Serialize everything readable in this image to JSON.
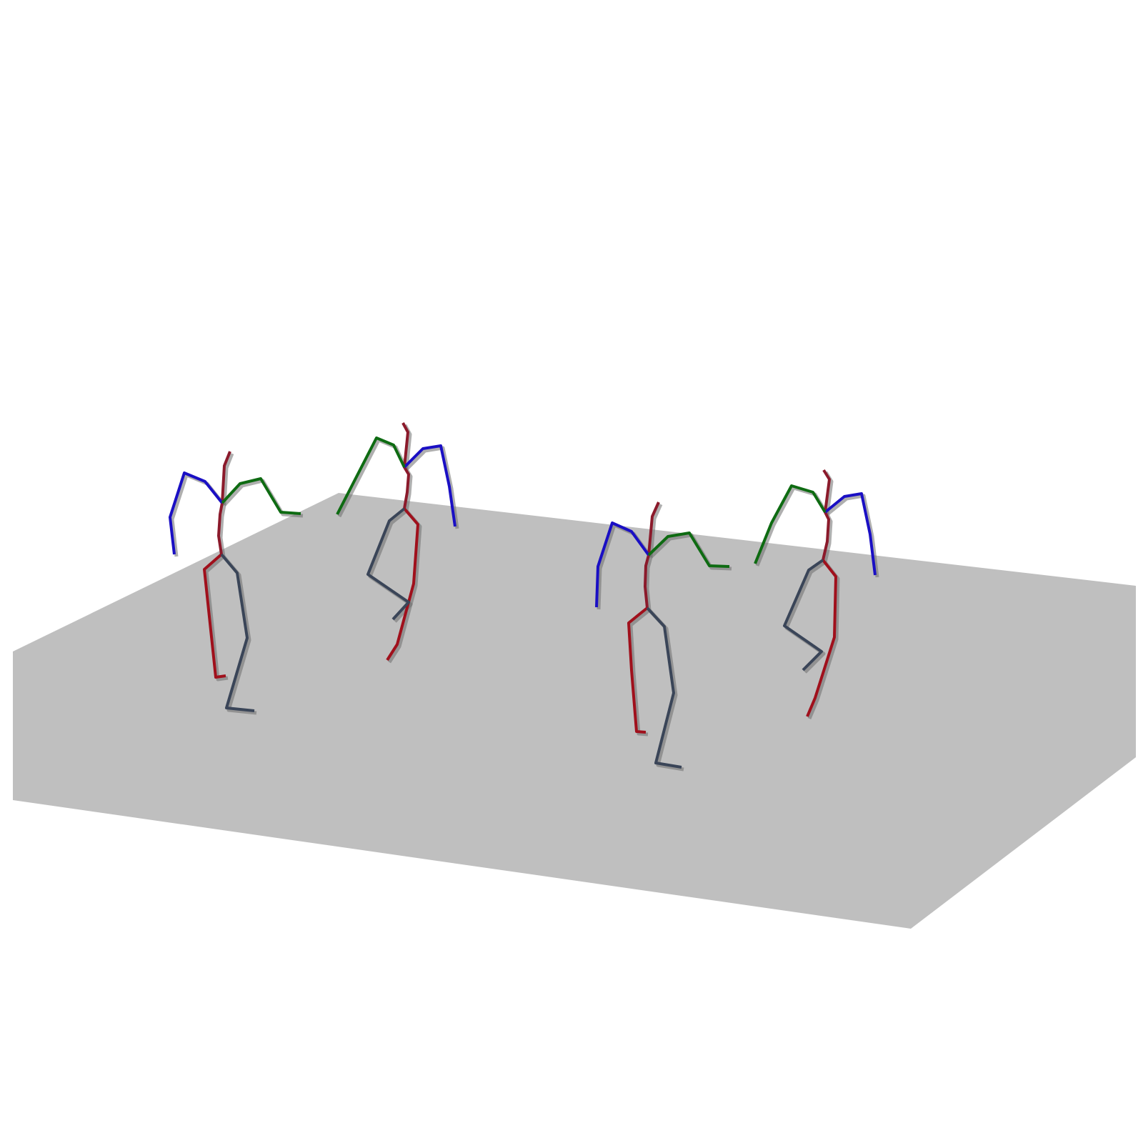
{
  "scene": {
    "background_color": "#ffffff",
    "floor_color": "#bfbfbf",
    "shadow_color": "#6e6e6e",
    "limb_colors": {
      "spine_head": "#8b1a2b",
      "left_arm": "#1a0fc4",
      "right_arm": "#0e6b12",
      "left_leg": "#a0101c",
      "right_leg": "#3a4558"
    },
    "figure_count": 4
  }
}
